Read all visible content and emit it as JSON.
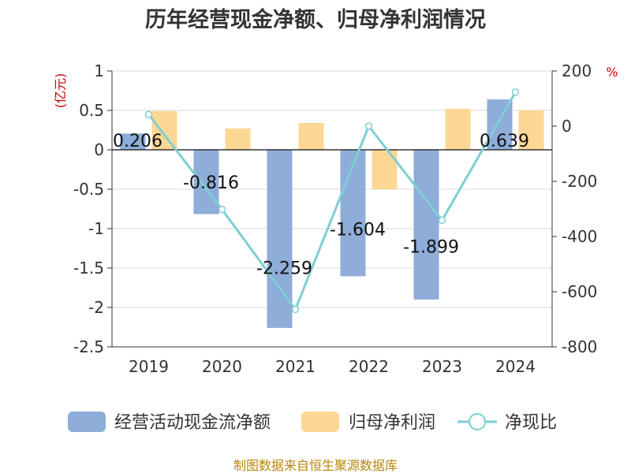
{
  "chart_data": {
    "type": "bar",
    "title": "历年经营现金净额、归母净利润情况",
    "categories": [
      "2019",
      "2020",
      "2021",
      "2022",
      "2023",
      "2024"
    ],
    "left_axis": {
      "unit": "(亿元)",
      "ylim": [
        -2.5,
        1
      ],
      "ticks": [
        1,
        0.5,
        0,
        -0.5,
        -1,
        -1.5,
        -2,
        -2.5
      ],
      "tick_labels": [
        "1",
        "0.5",
        "0",
        "-0.5",
        "-1",
        "-1.5",
        "-2",
        "-2.5"
      ]
    },
    "right_axis": {
      "unit": "%",
      "ylim": [
        -800,
        200
      ],
      "ticks": [
        200,
        0,
        -200,
        -400,
        -600,
        -800
      ],
      "tick_labels": [
        "200",
        "0",
        "-200",
        "-400",
        "-600",
        "-800"
      ]
    },
    "series": [
      {
        "name": "经营活动现金流净额",
        "type": "bar",
        "axis": "left",
        "color": "#8eadd9",
        "values": [
          0.206,
          -0.816,
          -2.259,
          -1.604,
          -1.899,
          0.639
        ],
        "data_labels": [
          "0.206",
          "-0.816",
          "-2.259",
          "-1.604",
          "-1.899",
          "0.639"
        ]
      },
      {
        "name": "归母净利润",
        "type": "bar",
        "axis": "left",
        "color": "#fdd794",
        "values": [
          0.49,
          0.27,
          0.34,
          -0.5,
          0.52,
          0.5
        ]
      },
      {
        "name": "净现比",
        "type": "line",
        "axis": "right",
        "color": "#7ecfd3",
        "values": [
          42,
          -302,
          -664,
          0,
          -341,
          123
        ]
      }
    ],
    "legend_position": "bottom",
    "grid": true
  },
  "footer": {
    "source": "制图数据来自恒生聚源数据库"
  }
}
